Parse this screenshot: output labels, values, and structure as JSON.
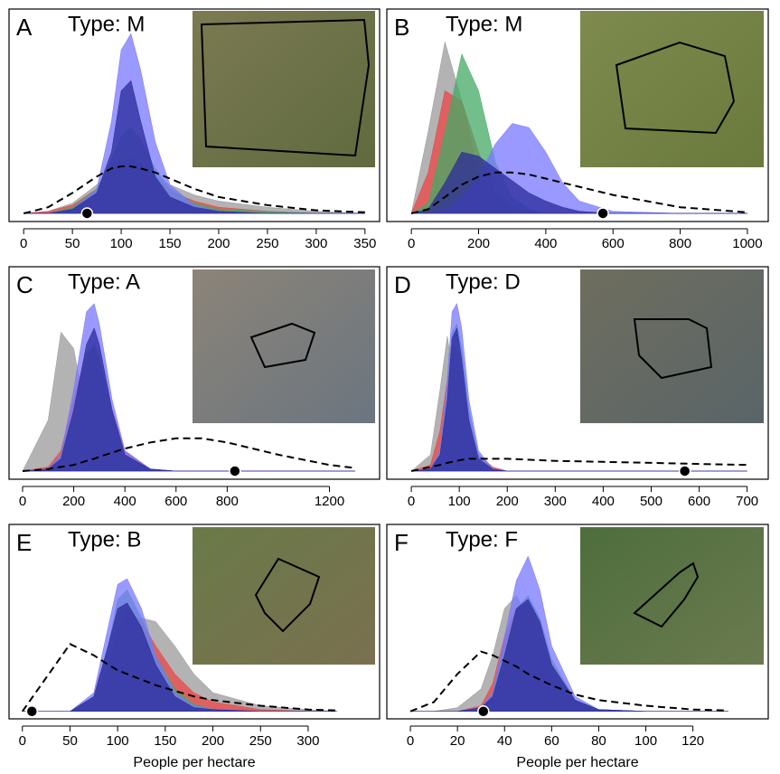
{
  "chart_data": [
    {
      "type": "density",
      "panel_label": "A",
      "title": "Type: M",
      "xlim": [
        -15,
        365
      ],
      "ylim": [
        -4,
        100
      ],
      "xticks": [
        0,
        50,
        100,
        150,
        200,
        250,
        300,
        350
      ],
      "x": [
        0,
        25,
        50,
        75,
        90,
        100,
        110,
        120,
        135,
        150,
        175,
        200,
        250,
        300,
        350
      ],
      "series": [
        {
          "color": "#999999",
          "values": [
            0,
            1,
            5,
            14,
            21,
            24,
            24,
            22,
            18,
            14,
            9,
            6,
            3,
            1,
            0
          ]
        },
        {
          "color": "#ee4444",
          "values": [
            0,
            1,
            4,
            12,
            20,
            26,
            27,
            24,
            17,
            11,
            6,
            3,
            1,
            0,
            0
          ]
        },
        {
          "color": "#44aa66",
          "values": [
            0,
            0,
            3,
            12,
            26,
            38,
            42,
            36,
            22,
            12,
            5,
            2,
            1,
            0,
            0
          ]
        },
        {
          "color": "#7777ff",
          "values": [
            0,
            0,
            2,
            12,
            45,
            80,
            88,
            70,
            35,
            14,
            4,
            1,
            0,
            0,
            0
          ]
        },
        {
          "color": "#2a2a99",
          "values": [
            0,
            0,
            2,
            10,
            30,
            60,
            65,
            45,
            18,
            8,
            3,
            1,
            0,
            0,
            0
          ]
        },
        {
          "color": "#000000",
          "dashed": true,
          "values": [
            0,
            3,
            10,
            18,
            22,
            23,
            23,
            22,
            20,
            17,
            12,
            8,
            4,
            1.5,
            0.5
          ]
        }
      ],
      "point_x": 65
    },
    {
      "type": "density",
      "panel_label": "B",
      "title": "Type: M",
      "xlim": [
        -73,
        1062
      ],
      "ylim": [
        -4,
        100
      ],
      "xticks": [
        0,
        200,
        400,
        600,
        800,
        1000
      ],
      "x": [
        0,
        50,
        100,
        150,
        200,
        250,
        300,
        350,
        400,
        450,
        500,
        600,
        800,
        1000
      ],
      "series": [
        {
          "color": "#999999",
          "values": [
            0,
            40,
            84,
            55,
            20,
            5,
            1,
            0,
            0,
            0,
            0,
            0,
            0,
            0
          ]
        },
        {
          "color": "#ee4444",
          "values": [
            0,
            20,
            60,
            55,
            30,
            10,
            3,
            1,
            0,
            0,
            0,
            0,
            0,
            0
          ]
        },
        {
          "color": "#44aa66",
          "values": [
            0,
            5,
            40,
            78,
            60,
            25,
            8,
            2,
            0,
            0,
            0,
            0,
            0,
            0
          ]
        },
        {
          "color": "#7777ff",
          "values": [
            0,
            0,
            2,
            8,
            18,
            34,
            44,
            42,
            30,
            15,
            6,
            1,
            0,
            0
          ]
        },
        {
          "color": "#2a2a99",
          "values": [
            0,
            2,
            15,
            30,
            28,
            22,
            16,
            10,
            6,
            3,
            1,
            0,
            0,
            0
          ]
        },
        {
          "color": "#000000",
          "dashed": true,
          "values": [
            0,
            2,
            8,
            14,
            18,
            20,
            20,
            19,
            17,
            15,
            13,
            9,
            3,
            0.5
          ]
        }
      ],
      "point_x": 570
    },
    {
      "type": "density",
      "panel_label": "C",
      "title": "Type: A",
      "xlim": [
        -53,
        1396
      ],
      "ylim": [
        -4,
        100
      ],
      "xticks": [
        0,
        200,
        400,
        600,
        800,
        1200
      ],
      "x": [
        0,
        100,
        150,
        200,
        250,
        280,
        300,
        350,
        400,
        500,
        600,
        700,
        800,
        1000,
        1200,
        1300
      ],
      "series": [
        {
          "color": "#999999",
          "values": [
            0,
            25,
            68,
            60,
            25,
            10,
            5,
            1,
            0,
            0,
            0,
            0,
            0,
            0,
            0,
            0
          ]
        },
        {
          "color": "#ee4444",
          "values": [
            0,
            2,
            10,
            35,
            58,
            60,
            55,
            30,
            10,
            1,
            0,
            0,
            0,
            0,
            0,
            0
          ]
        },
        {
          "color": "#44aa66",
          "values": [
            0,
            1,
            8,
            30,
            55,
            62,
            56,
            28,
            8,
            1,
            0,
            0,
            0,
            0,
            0,
            0
          ]
        },
        {
          "color": "#7777ff",
          "values": [
            0,
            1,
            8,
            40,
            78,
            82,
            72,
            35,
            10,
            1,
            0,
            0,
            0,
            0,
            0,
            0
          ]
        },
        {
          "color": "#2a2a99",
          "values": [
            0,
            1,
            6,
            30,
            62,
            70,
            62,
            30,
            8,
            1,
            0,
            0,
            0,
            0,
            0,
            0
          ]
        },
        {
          "color": "#000000",
          "dashed": true,
          "values": [
            0,
            1,
            2,
            3,
            5,
            6,
            7,
            9,
            11,
            14,
            16,
            16,
            14,
            8,
            3,
            1.5
          ]
        }
      ],
      "point_x": 830
    },
    {
      "type": "density",
      "panel_label": "D",
      "title": "Type: D",
      "xlim": [
        -51,
        744
      ],
      "ylim": [
        -4,
        100
      ],
      "xticks": [
        0,
        100,
        200,
        300,
        400,
        500,
        600,
        700
      ],
      "x": [
        0,
        40,
        60,
        75,
        85,
        95,
        105,
        120,
        140,
        170,
        200,
        300,
        400,
        500,
        600,
        700
      ],
      "series": [
        {
          "color": "#999999",
          "values": [
            0,
            8,
            40,
            66,
            50,
            30,
            15,
            5,
            1,
            0,
            0,
            0,
            0,
            0,
            0,
            0
          ]
        },
        {
          "color": "#ee4444",
          "values": [
            0,
            3,
            20,
            45,
            60,
            58,
            45,
            22,
            8,
            2,
            0,
            0,
            0,
            0,
            0,
            0
          ]
        },
        {
          "color": "#44aa66",
          "values": [
            0,
            1,
            10,
            40,
            68,
            72,
            60,
            30,
            8,
            1,
            0,
            0,
            0,
            0,
            0,
            0
          ]
        },
        {
          "color": "#7777ff",
          "values": [
            0,
            1,
            10,
            45,
            78,
            82,
            70,
            35,
            10,
            1,
            0,
            0,
            0,
            0,
            0,
            0
          ]
        },
        {
          "color": "#2a2a99",
          "values": [
            0,
            1,
            8,
            35,
            65,
            70,
            55,
            25,
            6,
            1,
            0,
            0,
            0,
            0,
            0,
            0
          ]
        },
        {
          "color": "#000000",
          "dashed": true,
          "values": [
            0,
            2,
            3,
            4,
            4.5,
            5,
            5.5,
            6,
            6,
            6,
            6,
            5,
            4.5,
            4,
            3.5,
            3
          ]
        }
      ],
      "point_x": 570
    },
    {
      "type": "density",
      "panel_label": "E",
      "title": "Type: B",
      "xlim": [
        -14,
        375
      ],
      "ylim": [
        -4,
        100
      ],
      "xticks": [
        0,
        50,
        100,
        150,
        200,
        250,
        300
      ],
      "x_label": "People per hectare",
      "x": [
        0,
        50,
        75,
        90,
        100,
        110,
        125,
        140,
        160,
        180,
        200,
        250,
        300,
        330
      ],
      "series": [
        {
          "color": "#999999",
          "values": [
            0,
            0,
            5,
            15,
            25,
            35,
            50,
            48,
            35,
            20,
            10,
            3,
            1,
            0
          ]
        },
        {
          "color": "#ee4444",
          "values": [
            0,
            0,
            6,
            25,
            45,
            55,
            48,
            35,
            20,
            10,
            5,
            1,
            0,
            0
          ]
        },
        {
          "color": "#44aa66",
          "values": [
            0,
            0,
            8,
            35,
            60,
            65,
            50,
            30,
            12,
            4,
            1,
            0,
            0,
            0
          ]
        },
        {
          "color": "#7777ff",
          "values": [
            0,
            0,
            10,
            45,
            68,
            71,
            55,
            30,
            10,
            3,
            1,
            0,
            0,
            0
          ]
        },
        {
          "color": "#2a2a99",
          "values": [
            0,
            0,
            8,
            35,
            55,
            58,
            45,
            25,
            8,
            2,
            1,
            0,
            0,
            0
          ]
        },
        {
          "color": "#000000",
          "dashed": true,
          "values": [
            0,
            36,
            30,
            25,
            22,
            20,
            17,
            14,
            11,
            8,
            6,
            3,
            1,
            0.5
          ]
        }
      ],
      "point_x": 10
    },
    {
      "type": "density",
      "panel_label": "F",
      "title": "Type: F",
      "xlim": [
        -10,
        152
      ],
      "ylim": [
        -4,
        100
      ],
      "xticks": [
        0,
        20,
        40,
        60,
        80,
        100,
        120
      ],
      "x_label": "People per hectare",
      "x": [
        0,
        10,
        20,
        30,
        35,
        40,
        45,
        50,
        55,
        60,
        70,
        80,
        100,
        120,
        135
      ],
      "series": [
        {
          "color": "#999999",
          "values": [
            0,
            0,
            2,
            12,
            30,
            55,
            62,
            50,
            30,
            15,
            4,
            1,
            0,
            0,
            0
          ]
        },
        {
          "color": "#ee4444",
          "values": [
            0,
            0,
            0,
            3,
            15,
            40,
            55,
            58,
            45,
            25,
            6,
            1,
            0,
            0,
            0
          ]
        },
        {
          "color": "#44aa66",
          "values": [
            0,
            0,
            0,
            2,
            10,
            35,
            55,
            62,
            50,
            28,
            6,
            1,
            0,
            0,
            0
          ]
        },
        {
          "color": "#7777ff",
          "values": [
            0,
            0,
            0,
            2,
            10,
            40,
            70,
            83,
            65,
            35,
            8,
            1,
            0,
            0,
            0
          ]
        },
        {
          "color": "#2a2a99",
          "values": [
            0,
            0,
            0,
            2,
            8,
            30,
            55,
            60,
            48,
            25,
            6,
            1,
            0,
            0,
            0
          ]
        },
        {
          "color": "#000000",
          "dashed": true,
          "values": [
            0,
            5,
            20,
            32,
            30,
            27,
            24,
            20,
            17,
            14,
            9,
            6,
            3,
            1,
            0.5
          ]
        }
      ],
      "point_x": 31
    }
  ]
}
